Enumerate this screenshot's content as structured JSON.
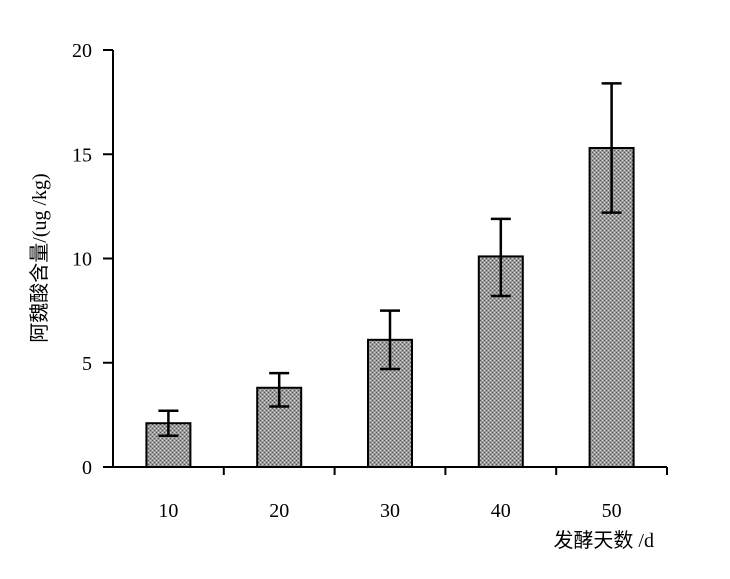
{
  "chart_data": {
    "type": "bar",
    "title": "",
    "xlabel": "发酵天数 /d",
    "ylabel": "阿魏酸含量/(ug /kg)",
    "categories": [
      "10",
      "20",
      "30",
      "40",
      "50"
    ],
    "series": [
      {
        "values": [
          2.1,
          3.8,
          6.1,
          10.1,
          15.3
        ],
        "error_lower": [
          1.5,
          2.9,
          4.7,
          8.2,
          12.2
        ],
        "error_upper": [
          2.7,
          4.5,
          7.5,
          11.9,
          18.4
        ]
      }
    ],
    "ylim": [
      0,
      20
    ],
    "yticks": [
      0,
      5,
      10,
      15,
      20
    ],
    "grid": false,
    "legend": "none",
    "colors": {
      "bar_fill": "#8c8c8c",
      "bar_stroke": "#000000",
      "axis": "#000000"
    }
  }
}
